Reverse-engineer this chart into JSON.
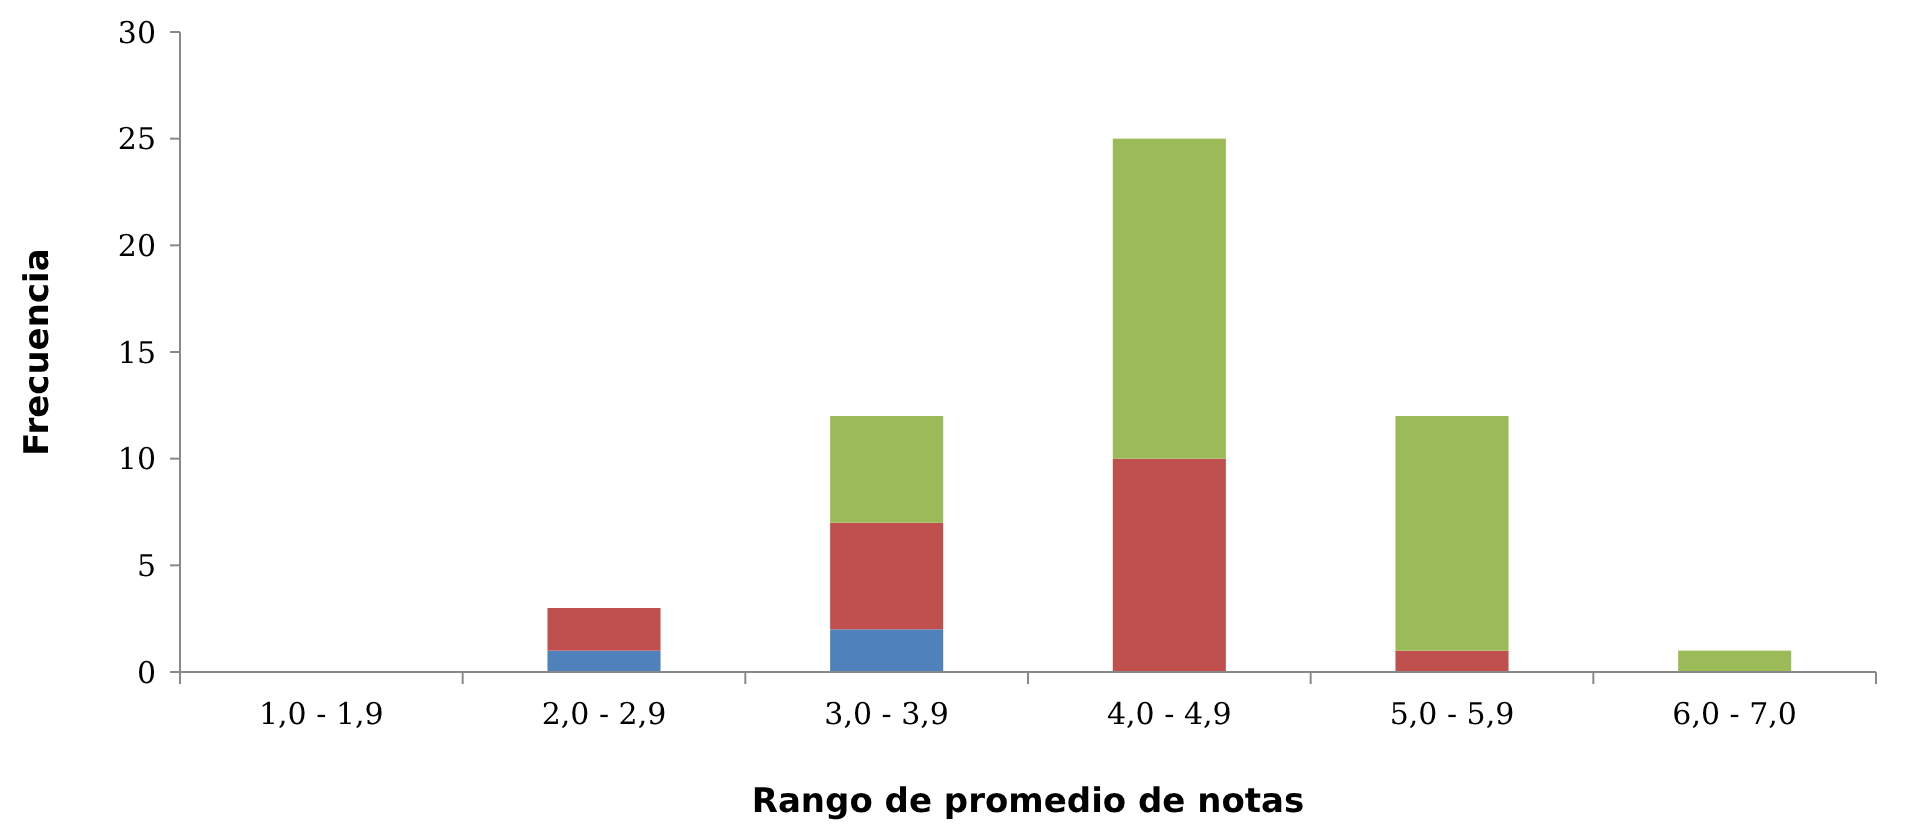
{
  "chart_data": {
    "type": "bar",
    "stacked": true,
    "xlabel": "Rango de promedio de notas",
    "ylabel": "Frecuencia",
    "categories": [
      "1,0 - 1,9",
      "2,0 - 2,9",
      "3,0 - 3,9",
      "4,0 - 4,9",
      "5,0 - 5,9",
      "6,0 - 7,0"
    ],
    "series": [
      {
        "color": "#4f81bd",
        "values": [
          0,
          1,
          2,
          0,
          0,
          0
        ]
      },
      {
        "color": "#c0504d",
        "values": [
          0,
          2,
          5,
          10,
          1,
          0
        ]
      },
      {
        "color": "#9bbb59",
        "values": [
          0,
          0,
          5,
          15,
          11,
          1
        ]
      }
    ],
    "ylim": [
      0,
      30
    ],
    "yticks": [
      0,
      5,
      10,
      15,
      20,
      25,
      30
    ],
    "grid": false
  }
}
